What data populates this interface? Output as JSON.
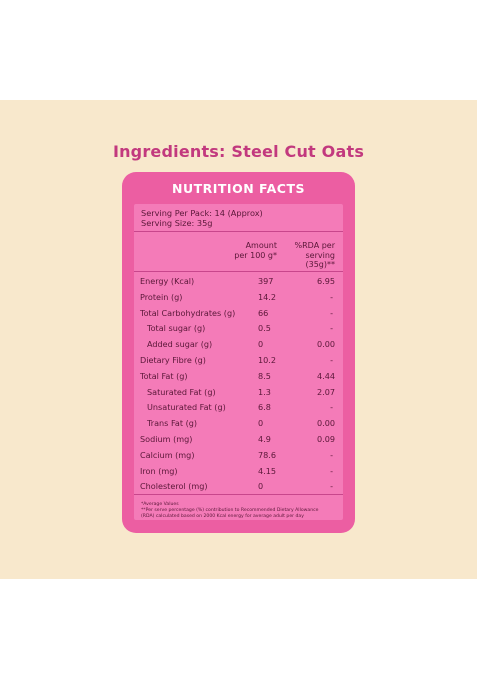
{
  "page": {
    "title": "Ingredients: Steel Cut Oats"
  },
  "nutrition": {
    "heading": "NUTRITION FACTS",
    "serving_per_pack": "Serving Per Pack: 14 (Approx)",
    "serving_size": "Serving Size: 35g",
    "col_amount_1": "Amount",
    "col_amount_2": "per 100 g*",
    "col_rda_1": "%RDA per",
    "col_rda_2": "serving",
    "col_rda_3": "(35g)**",
    "rows": [
      {
        "name": "Energy (Kcal)",
        "value": "397",
        "rda": "6.95",
        "indent": false
      },
      {
        "name": "Protein (g)",
        "value": "14.2",
        "rda": "-",
        "indent": false
      },
      {
        "name": "Total Carbohydrates (g)",
        "value": "66",
        "rda": "-",
        "indent": false
      },
      {
        "name": "Total sugar (g)",
        "value": "0.5",
        "rda": "-",
        "indent": true
      },
      {
        "name": "Added sugar (g)",
        "value": "0",
        "rda": "0.00",
        "indent": true
      },
      {
        "name": "Dietary Fibre (g)",
        "value": "10.2",
        "rda": "-",
        "indent": false
      },
      {
        "name": "Total Fat (g)",
        "value": "8.5",
        "rda": "4.44",
        "indent": false
      },
      {
        "name": "Saturated Fat (g)",
        "value": "1.3",
        "rda": "2.07",
        "indent": true
      },
      {
        "name": "Unsaturated Fat (g)",
        "value": "6.8",
        "rda": "-",
        "indent": true
      },
      {
        "name": "Trans Fat (g)",
        "value": "0",
        "rda": "0.00",
        "indent": true
      },
      {
        "name": "Sodium (mg)",
        "value": "4.9",
        "rda": "0.09",
        "indent": false
      },
      {
        "name": "Calcium (mg)",
        "value": "78.6",
        "rda": "-",
        "indent": false
      },
      {
        "name": "Iron (mg)",
        "value": "4.15",
        "rda": "-",
        "indent": false
      },
      {
        "name": "Cholesterol (mg)",
        "value": "0",
        "rda": "-",
        "indent": false
      }
    ],
    "footnote_1": "*Average Values",
    "footnote_2": "**Per serve percentage (%) contribution to Recommended Dietary Allowance",
    "footnote_3": "(RDA) calculated based on 2000 Kcal energy for average adult per day"
  },
  "colors": {
    "title": "#c2397e",
    "card": "#ec5ea2",
    "panel": "#f47bb8",
    "background_band": "#f8e8cc",
    "text_dark": "#5a1738"
  }
}
